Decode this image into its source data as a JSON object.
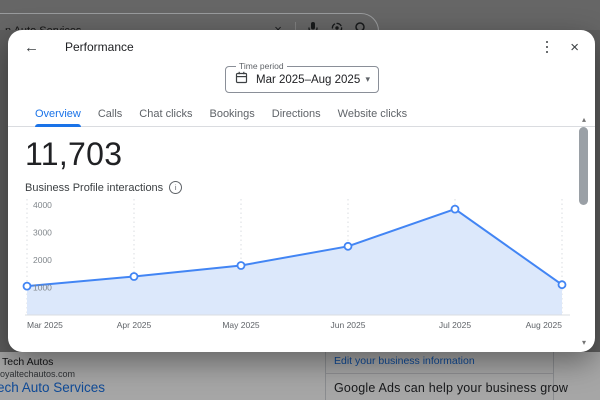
{
  "browser_bar": {
    "query": "n Auto Services"
  },
  "icons": {
    "back": "←",
    "close": "×",
    "clear": "×",
    "caret_down": "▾",
    "info": "i",
    "scroll_up": "▴",
    "scroll_down": "▾"
  },
  "dialog": {
    "title": "Performance",
    "time_period": {
      "label": "Time period",
      "value": "Mar 2025–Aug 2025"
    },
    "tabs": [
      {
        "label": "Overview",
        "active": true
      },
      {
        "label": "Calls",
        "active": false
      },
      {
        "label": "Chat clicks",
        "active": false
      },
      {
        "label": "Bookings",
        "active": false
      },
      {
        "label": "Directions",
        "active": false
      },
      {
        "label": "Website clicks",
        "active": false
      }
    ],
    "metric": {
      "value": "11,703",
      "caption": "Business Profile interactions"
    }
  },
  "chart_data": {
    "type": "area",
    "title": "Business Profile interactions",
    "x": [
      "Mar 2025",
      "Apr 2025",
      "May 2025",
      "Jun 2025",
      "Jul 2025",
      "Aug 2025"
    ],
    "values": [
      1050,
      1400,
      1800,
      2500,
      3850,
      1103
    ],
    "total": 11703,
    "xlabel": "",
    "ylabel": "",
    "y_ticks": [
      1000,
      2000,
      3000,
      4000
    ],
    "ylim": [
      0,
      4350
    ],
    "grid": "vertical-dotted",
    "legend": "none",
    "marker": "open-circle",
    "line_color": "#4285f4",
    "fill_color": "#dce8fb"
  },
  "background_page": {
    "business_name": "l Tech Autos",
    "website": "royaltechautos.com",
    "services_link": "ech Auto Services",
    "card": {
      "edit_link": "Edit your business information",
      "promo_heading": "Google Ads can help your business grow"
    }
  },
  "colors": {
    "accent_blue": "#1a73e8",
    "chart_line": "#4285f4",
    "chart_fill": "#dce8fb",
    "text_primary": "#202124",
    "text_secondary": "#5f6368",
    "border": "#dadce0",
    "scrim": "rgba(0,0,0,0.35)"
  }
}
